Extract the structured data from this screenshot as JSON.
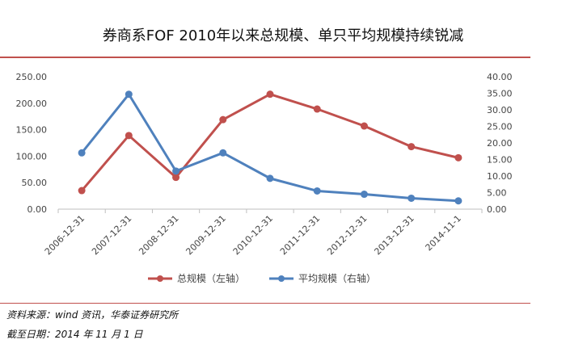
{
  "title": "券商系FOF 2010年以来总规模、单只平均规模持续锐减",
  "chart_data": {
    "type": "line",
    "title": "券商系FOF 2010年以来总规模、单只平均规模持续锐减",
    "categories": [
      "2006-12-31",
      "2007-12-31",
      "2008-12-31",
      "2009-12-31",
      "2010-12-31",
      "2011-12-31",
      "2012-12-31",
      "2013-12-31",
      "2014-11-1"
    ],
    "series": [
      {
        "name": "总规模（左轴）",
        "axis": "left",
        "color": "#c0504d",
        "values": [
          35,
          139,
          60,
          169,
          217,
          189,
          157,
          118,
          97
        ]
      },
      {
        "name": "平均规模（右轴）",
        "axis": "right",
        "color": "#4f81bd",
        "values": [
          17,
          34.7,
          11.5,
          17,
          9.3,
          5.5,
          4.5,
          3.3,
          2.5
        ]
      }
    ],
    "y_left": {
      "min": 0,
      "max": 250,
      "step": 50,
      "tick_labels": [
        "0.00",
        "50.00",
        "100.00",
        "150.00",
        "200.00",
        "250.00"
      ]
    },
    "y_right": {
      "min": 0,
      "max": 40,
      "step": 5,
      "tick_labels": [
        "0.00",
        "5.00",
        "10.00",
        "15.00",
        "20.00",
        "25.00",
        "30.00",
        "35.00",
        "40.00"
      ]
    },
    "grid": false,
    "legend_position": "bottom"
  },
  "footer": {
    "source": "资料来源：wind 资讯，华泰证券研究所",
    "date": "截至日期：2014 年 11 月 1 日"
  }
}
